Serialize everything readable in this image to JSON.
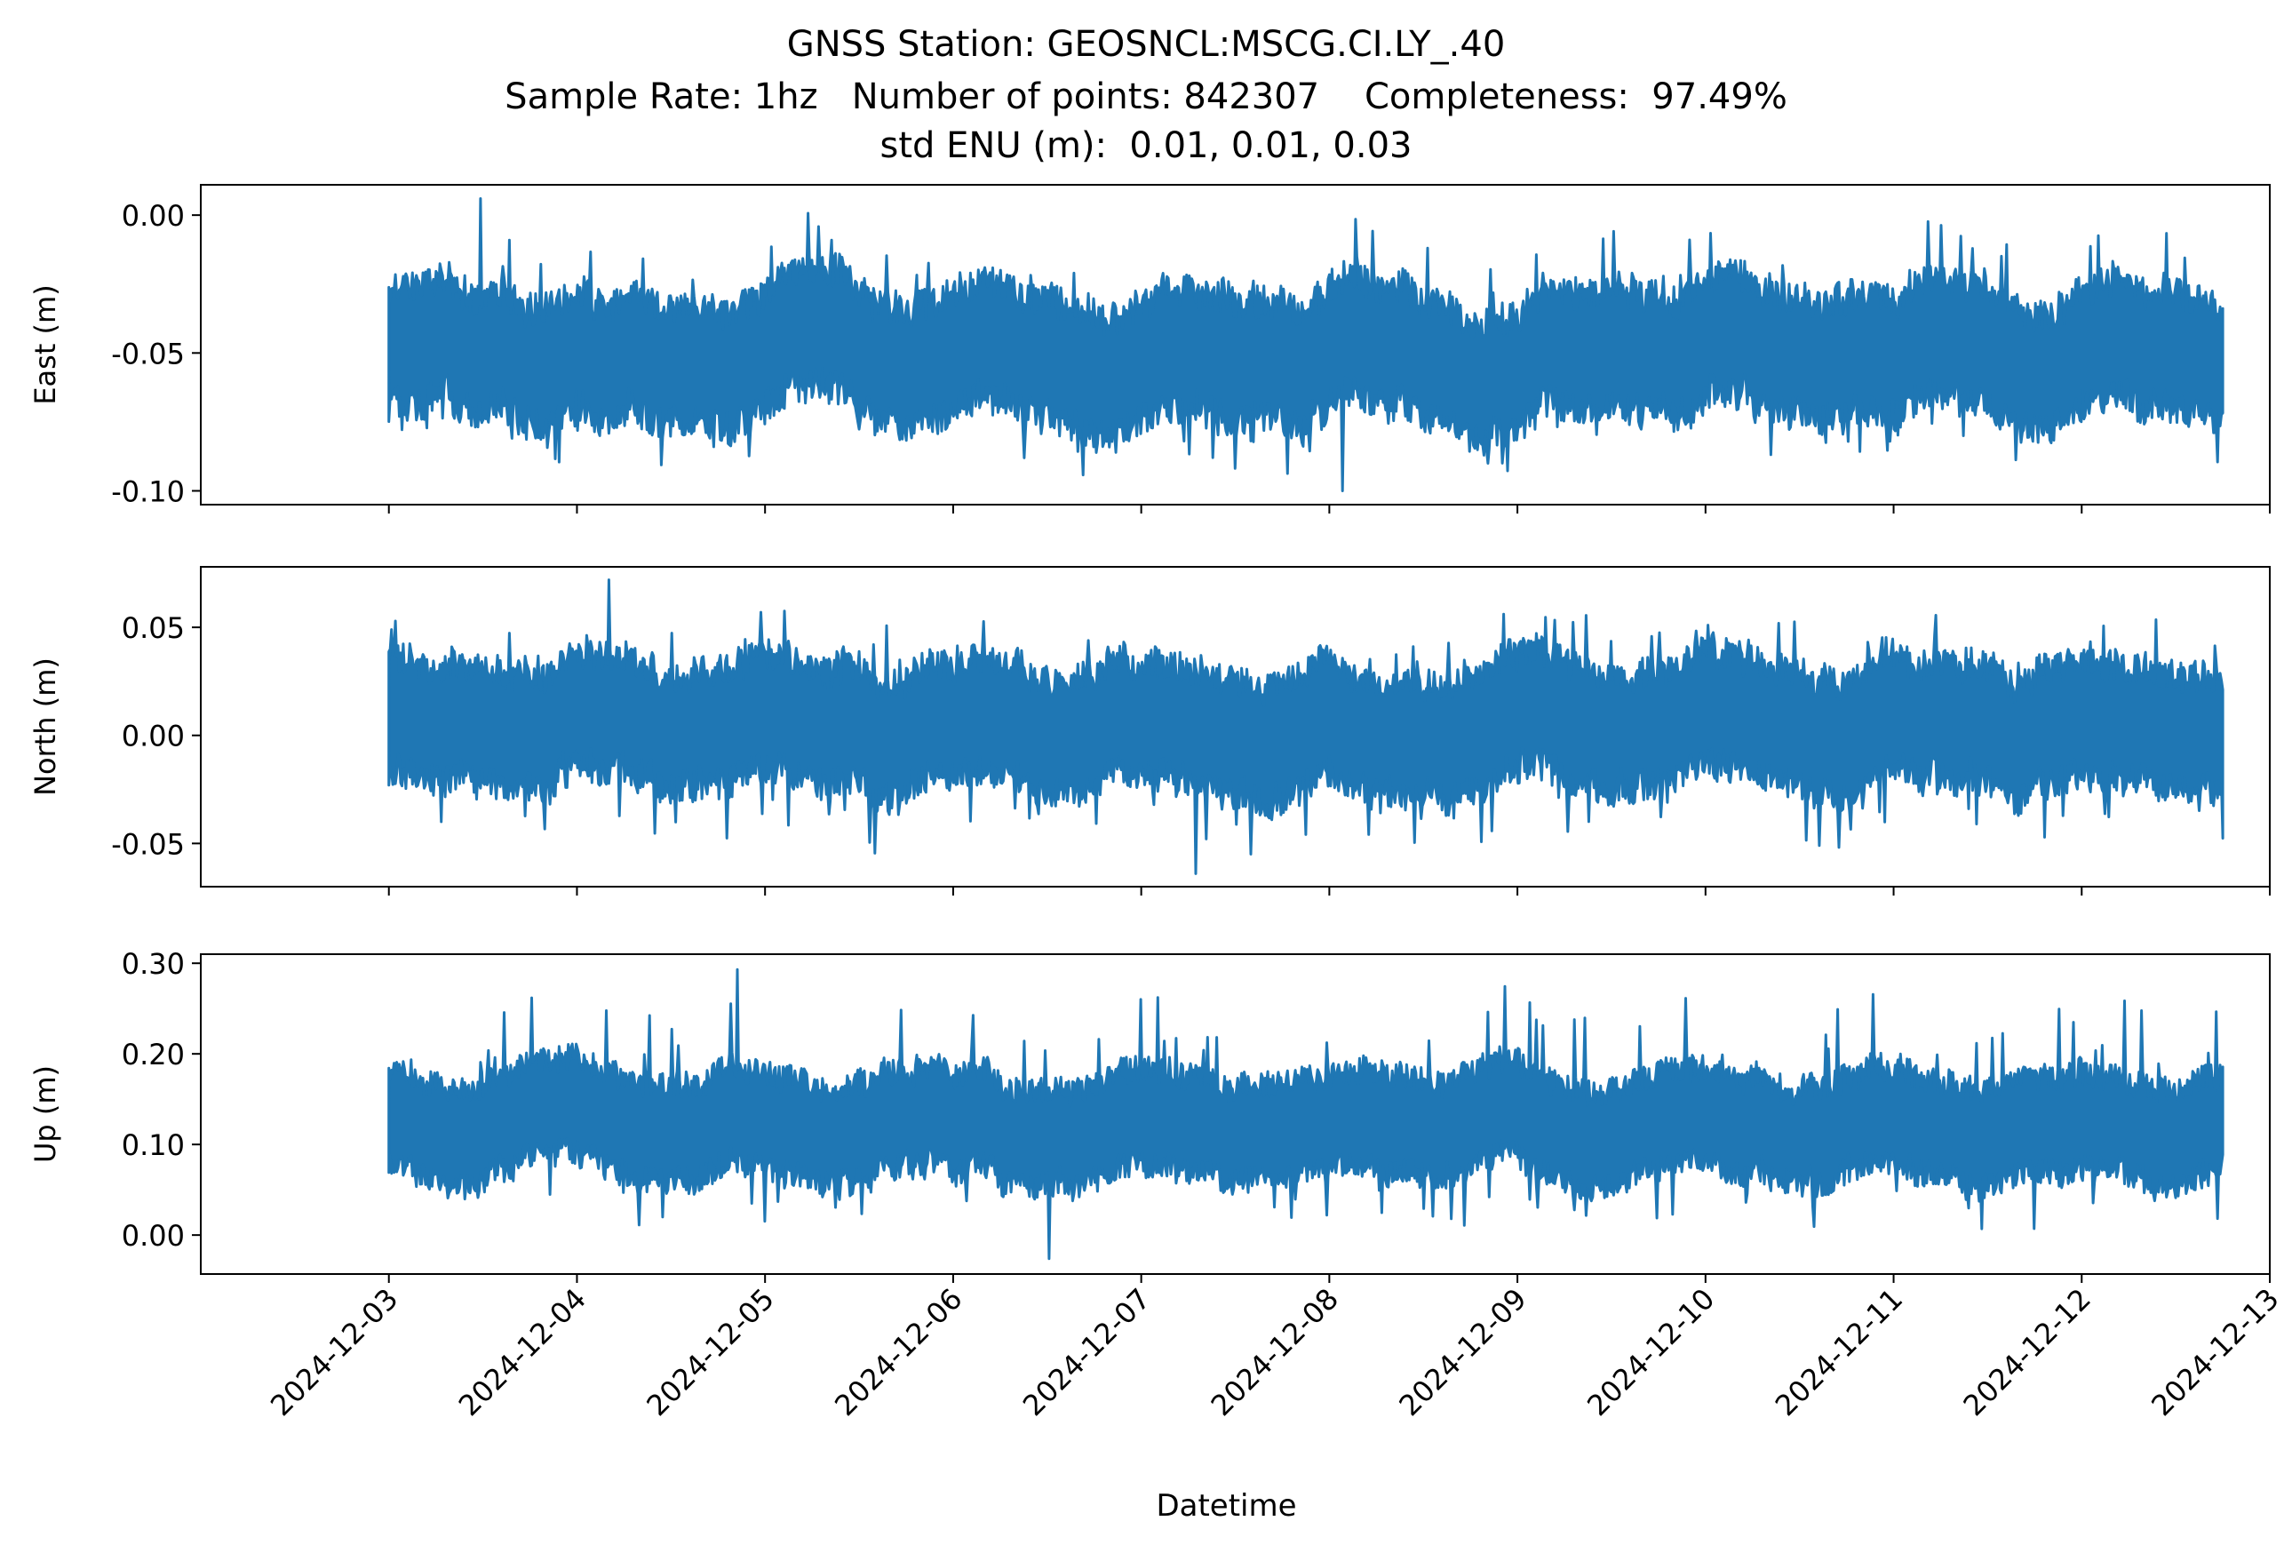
{
  "figure": {
    "title_lines": [
      "GNSS Station: GEOSNCL:MSCG.CI.LY_.40",
      "Sample Rate: 1hz   Number of points: 842307    Completeness:  97.49%",
      "std ENU (m):  0.01, 0.01, 0.03"
    ],
    "xlabel": "Datetime",
    "line_color": "#1f77b4"
  },
  "chart_data": [
    {
      "type": "line",
      "ylabel": "East (m)",
      "series": [
        {
          "mean": -0.05,
          "low": -0.07,
          "high": -0.03,
          "min": -0.1,
          "max": 0.006
        }
      ],
      "ylim": [
        -0.105,
        0.011
      ],
      "yticks": [
        0.0,
        -0.05,
        -0.1
      ],
      "ytick_labels": [
        "0.00",
        "-0.05",
        "-0.10"
      ]
    },
    {
      "type": "line",
      "ylabel": "North (m)",
      "series": [
        {
          "mean": 0.005,
          "low": -0.02,
          "high": 0.03,
          "min": -0.064,
          "max": 0.072
        }
      ],
      "ylim": [
        -0.07,
        0.078
      ],
      "yticks": [
        0.05,
        0.0,
        -0.05
      ],
      "ytick_labels": [
        "0.05",
        "0.00",
        "-0.05"
      ]
    },
    {
      "type": "line",
      "ylabel": "Up (m)",
      "series": [
        {
          "mean": 0.125,
          "low": 0.07,
          "high": 0.17,
          "min": -0.026,
          "max": 0.293
        }
      ],
      "ylim": [
        -0.043,
        0.31
      ],
      "yticks": [
        0.3,
        0.2,
        0.1,
        0.0
      ],
      "ytick_labels": [
        "0.30",
        "0.20",
        "0.10",
        "0.00"
      ]
    }
  ],
  "x_axis": {
    "range": [
      "2024-12-02",
      "2024-12-13"
    ],
    "data_range": [
      "2024-12-03",
      "2024-12-12T18:00"
    ],
    "tick_labels": [
      "2024-12-03",
      "2024-12-04",
      "2024-12-05",
      "2024-12-06",
      "2024-12-07",
      "2024-12-08",
      "2024-12-09",
      "2024-12-10",
      "2024-12-11",
      "2024-12-12",
      "2024-12-13"
    ]
  }
}
